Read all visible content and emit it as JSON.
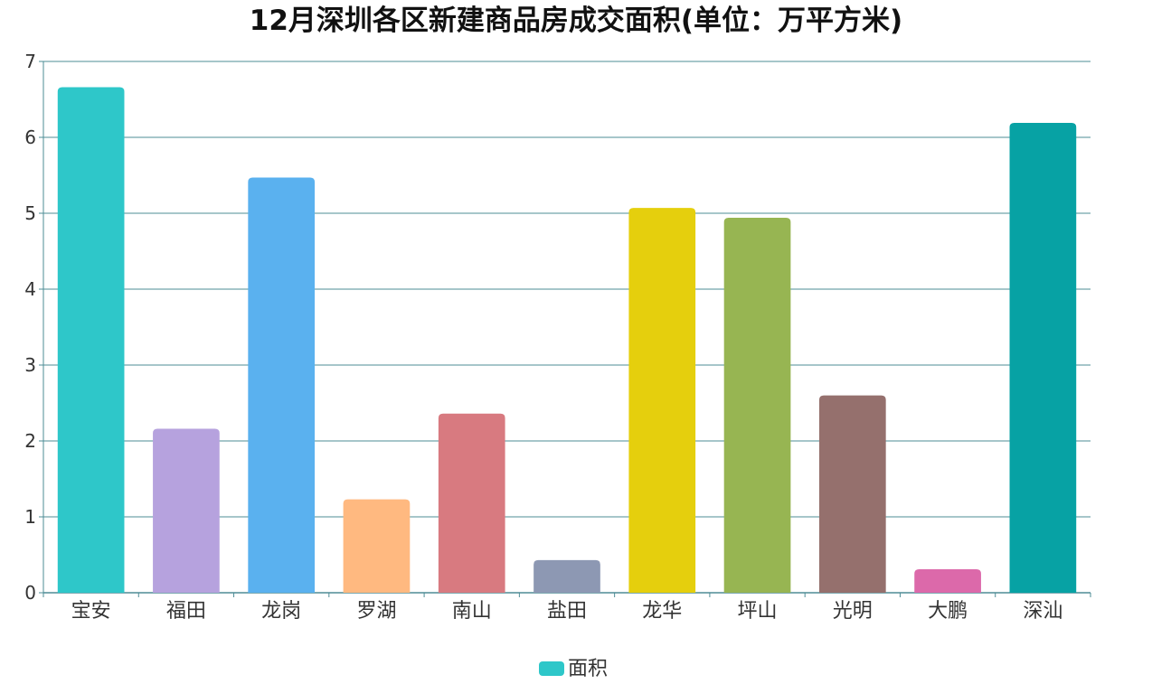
{
  "chart_data": {
    "type": "bar",
    "title": "12月深圳各区新建商品房成交面积(单位：万平方米)",
    "categories": [
      "宝安",
      "福田",
      "龙岗",
      "罗湖",
      "南山",
      "盐田",
      "龙华",
      "坪山",
      "光明",
      "大鹏",
      "深汕"
    ],
    "series": [
      {
        "name": "面积",
        "values": [
          6.66,
          2.16,
          5.47,
          1.23,
          2.36,
          0.43,
          5.07,
          4.94,
          2.6,
          0.31,
          6.19
        ]
      }
    ],
    "bar_colors": [
      "#2ec7c9",
      "#b6a2de",
      "#5ab1ef",
      "#ffb980",
      "#d87a80",
      "#8d98b3",
      "#e5cf0d",
      "#97b552",
      "#95706d",
      "#dc69aa",
      "#07a2a4"
    ],
    "legend_color": "#2ec7c9",
    "ylim": [
      0,
      7
    ],
    "yticks": [
      "0",
      "1",
      "2",
      "3",
      "4",
      "5",
      "6",
      "7"
    ],
    "ytick_values": [
      0,
      1,
      2,
      3,
      4,
      5,
      6,
      7
    ],
    "grid": true,
    "grid_color": "#4e8c95",
    "legend_position": "bottom-center",
    "xlabel": "",
    "ylabel": ""
  }
}
